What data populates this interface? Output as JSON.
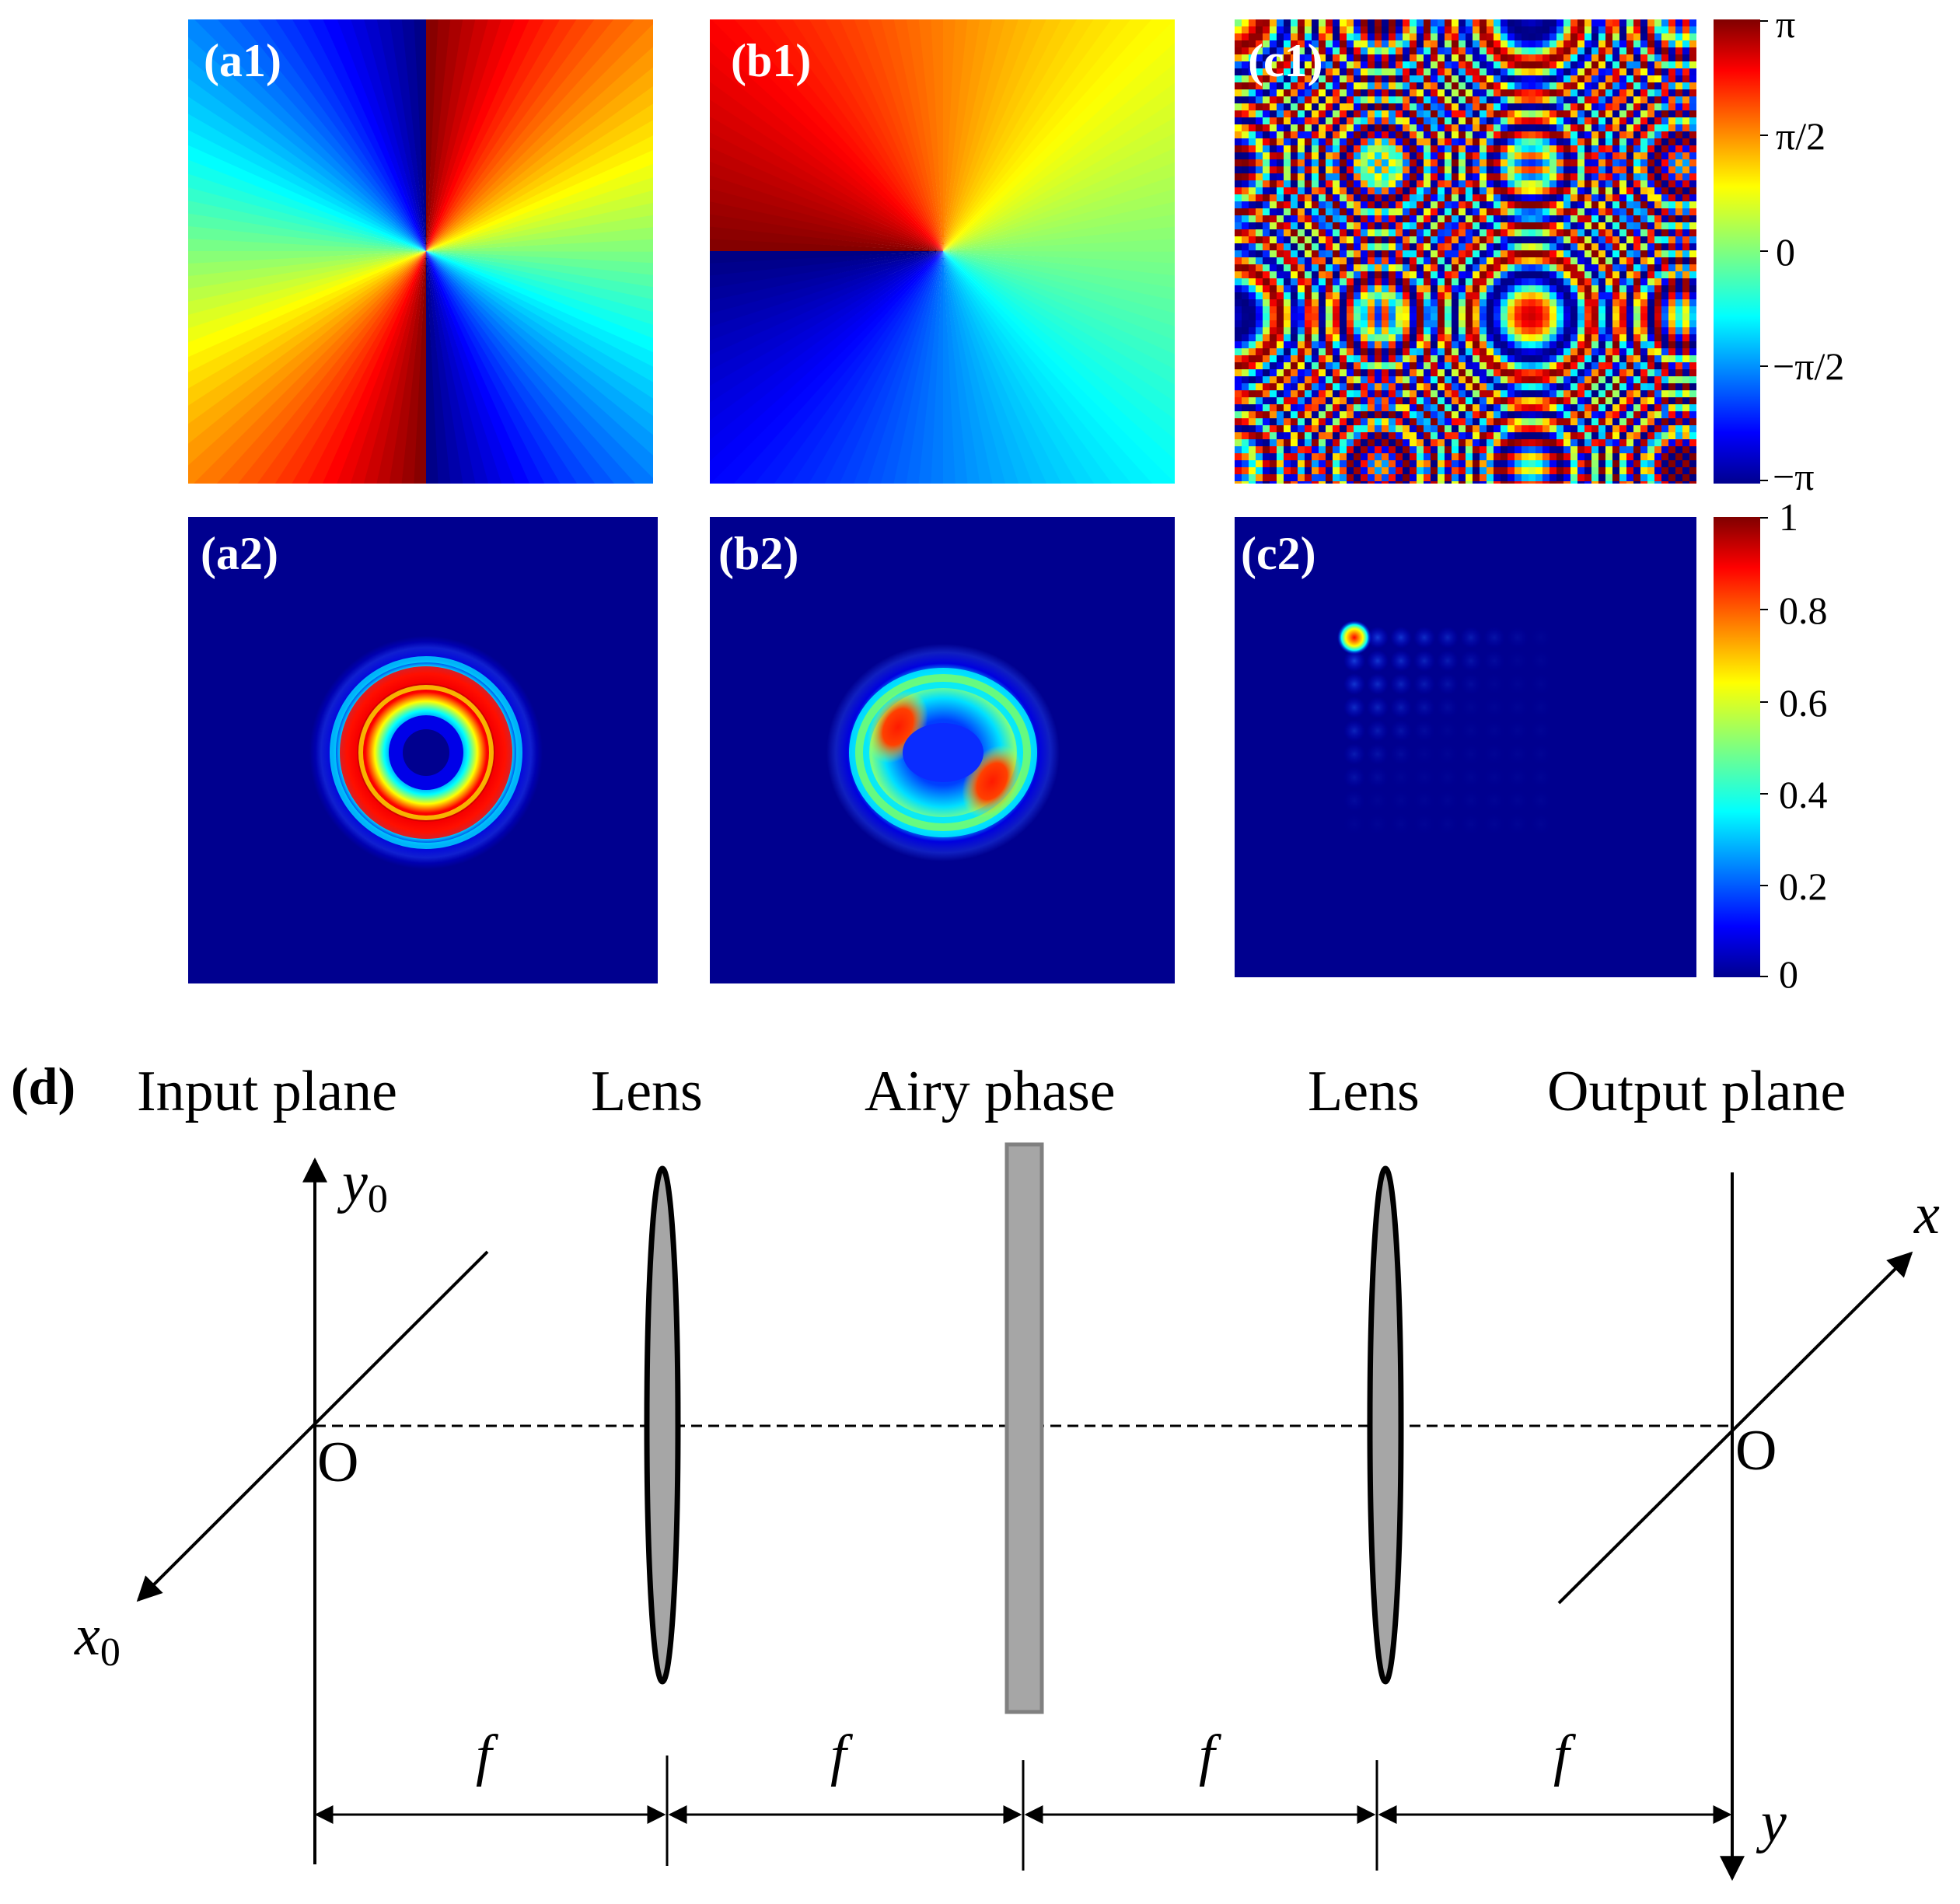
{
  "panels": {
    "a1": "(a1)",
    "b1": "(b1)",
    "c1": "(c1)",
    "a2": "(a2)",
    "b2": "(b2)",
    "c2": "(c2)"
  },
  "colorbar_phase": {
    "ticks": [
      "π",
      "π/2",
      "0",
      "−π/2",
      "−π"
    ],
    "range": [
      "-π",
      "π"
    ]
  },
  "colorbar_intensity": {
    "ticks": [
      "1",
      "0.8",
      "0.6",
      "0.4",
      "0.2",
      "0"
    ],
    "range": [
      0,
      1
    ]
  },
  "schematic": {
    "panel_label": "(d)",
    "elements": {
      "input_plane": "Input plane",
      "lens1": "Lens",
      "airy_phase": "Airy phase",
      "lens2": "Lens",
      "output_plane": "Output plane"
    },
    "axes": {
      "y0": "y",
      "y0_sub": "0",
      "x0": "x",
      "x0_sub": "0",
      "x": "x",
      "y": "y",
      "origin_in": "O",
      "origin_out": "O"
    },
    "distances": [
      "f",
      "f",
      "f",
      "f"
    ]
  },
  "colors": {
    "jet_dark_blue": "#00008f",
    "lens_fill": "#a6a6a6",
    "plate_fill": "#a6a6a6"
  }
}
